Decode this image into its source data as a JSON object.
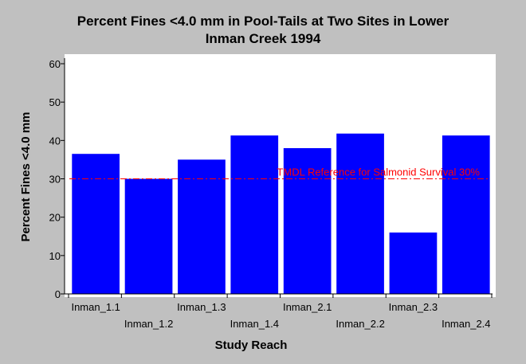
{
  "chart_data": {
    "type": "bar",
    "title": "Percent Fines <4.0 mm in Pool-Tails at Two Sites in Lower Inman Creek 1994",
    "title_lines": [
      "Percent Fines <4.0 mm in Pool-Tails at Two Sites in Lower",
      "Inman Creek 1994"
    ],
    "xlabel": "Study Reach",
    "ylabel": "Percent Fines <4.0 mm",
    "categories": [
      "Inman_1.1",
      "Inman_1.2",
      "Inman_1.3",
      "Inman_1.4",
      "Inman_2.1",
      "Inman_2.2",
      "Inman_2.3",
      "Inman_2.4"
    ],
    "values": [
      36.5,
      30.0,
      35.0,
      41.3,
      38.0,
      41.8,
      16.0,
      41.3
    ],
    "ylim": [
      0,
      60
    ],
    "yticks": [
      0,
      10,
      20,
      30,
      40,
      50,
      60
    ],
    "grid": false,
    "bar_color": "#0000ff",
    "reference_line": {
      "value": 30,
      "label": "TMDL Reference for Salmonid Survival 30%",
      "color": "#ff0000",
      "style": "dash-dot"
    }
  }
}
